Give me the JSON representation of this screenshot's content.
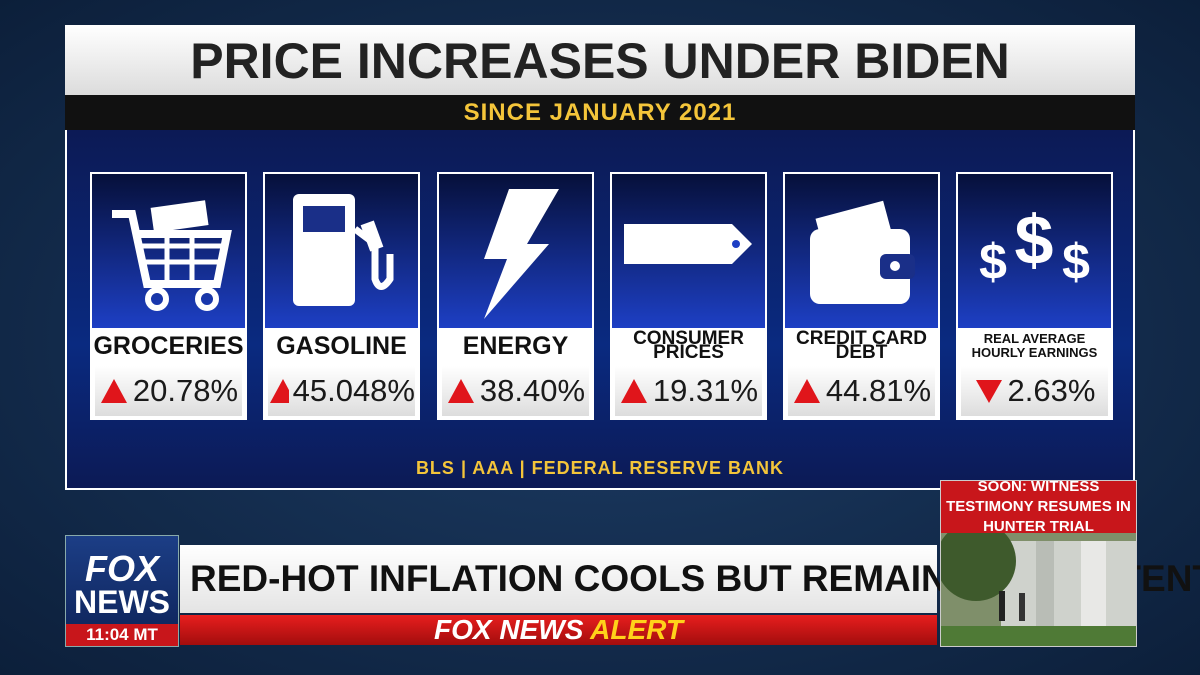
{
  "header": {
    "title": "PRICE INCREASES UNDER BIDEN",
    "subtitle": "SINCE JANUARY 2021"
  },
  "cards": [
    {
      "label": "GROCERIES",
      "trend": "up",
      "value": "20.78%"
    },
    {
      "label": "GASOLINE",
      "trend": "up",
      "value": "45.048%"
    },
    {
      "label": "ENERGY",
      "trend": "up",
      "value": "38.40%"
    },
    {
      "label": "CONSUMER PRICES",
      "trend": "up",
      "value": "19.31%"
    },
    {
      "label": "CREDIT CARD DEBT",
      "trend": "up",
      "value": "44.81%"
    },
    {
      "label": "REAL AVERAGE HOURLY EARNINGS",
      "trend": "down",
      "value": "2.63%"
    }
  ],
  "source": "BLS | AAA | FEDERAL RESERVE BANK",
  "ticker": {
    "logo_top": "FOX",
    "logo_bottom": "NEWS",
    "time": "11:04 MT",
    "headline": "RED-HOT INFLATION COOLS BUT REMAINS PERSISTENT",
    "alert_brand": "FOX NEWS",
    "alert_word": "ALERT"
  },
  "inset": {
    "caption": "SOON: WITNESS TESTIMONY RESUMES IN HUNTER TRIAL"
  }
}
